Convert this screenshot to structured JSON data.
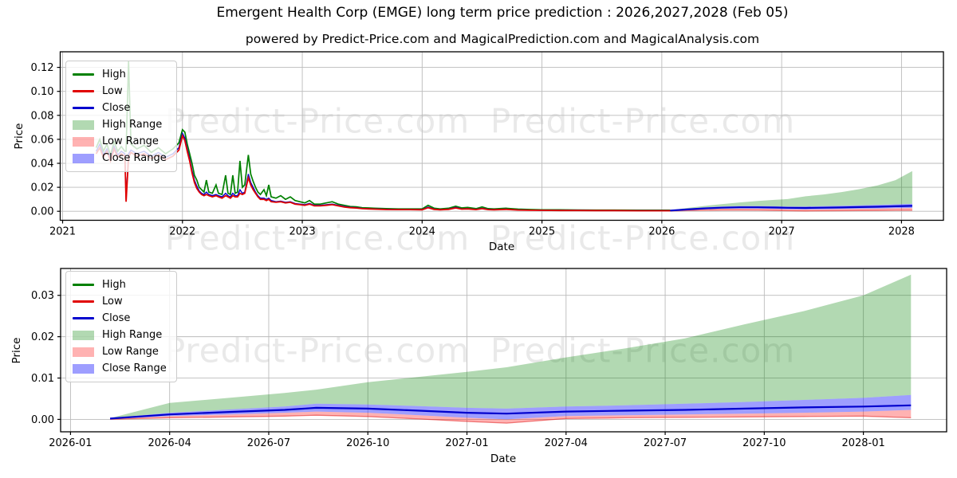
{
  "header": {
    "title": "Emergent Health Corp (EMGE) long term price prediction : 2026,2027,2028 (Feb 05)",
    "subtitle": "powered by Predict-Price.com and MagicalPrediction.com and MagicalAnalysis.com"
  },
  "watermark": {
    "text": "Predict-Price.com",
    "color": "#e9e9e9"
  },
  "colors": {
    "high_line": "#008000",
    "low_line": "#e00000",
    "close_line": "#0000cd",
    "pred_low_line": "rgba(225,30,30,0.55)",
    "high_range_fill": "rgba(0,128,0,0.30)",
    "low_range_fill": "rgba(255,0,0,0.30)",
    "close_range_fill": "rgba(40,40,255,0.45)",
    "grid": "#bbbbbb",
    "spine": "#000000"
  },
  "legend": [
    {
      "label": "High",
      "swatch": "line",
      "color_key": "high_line"
    },
    {
      "label": "Low",
      "swatch": "line",
      "color_key": "low_line"
    },
    {
      "label": "Close",
      "swatch": "line",
      "color_key": "close_line"
    },
    {
      "label": "High Range",
      "swatch": "patch",
      "color_key": "high_range_fill"
    },
    {
      "label": "Low Range",
      "swatch": "patch",
      "color_key": "low_range_fill"
    },
    {
      "label": "Close Range",
      "swatch": "patch",
      "color_key": "close_range_fill"
    }
  ],
  "chart_data": [
    {
      "type": "line",
      "xlabel": "Date",
      "ylabel": "Price",
      "grid": true,
      "legend_position": "upper-left",
      "xlim": [
        2020.98,
        2028.35
      ],
      "ylim": [
        -0.0075,
        0.133
      ],
      "xticks": [
        {
          "v": 2021,
          "label": "2021"
        },
        {
          "v": 2022,
          "label": "2022"
        },
        {
          "v": 2023,
          "label": "2023"
        },
        {
          "v": 2024,
          "label": "2024"
        },
        {
          "v": 2025,
          "label": "2025"
        },
        {
          "v": 2026,
          "label": "2026"
        },
        {
          "v": 2027,
          "label": "2027"
        },
        {
          "v": 2028,
          "label": "2028"
        }
      ],
      "yticks": [
        {
          "v": 0.0,
          "label": "0.00"
        },
        {
          "v": 0.02,
          "label": "0.02"
        },
        {
          "v": 0.04,
          "label": "0.04"
        },
        {
          "v": 0.06,
          "label": "0.06"
        },
        {
          "v": 0.08,
          "label": "0.08"
        },
        {
          "v": 0.1,
          "label": "0.10"
        },
        {
          "v": 0.12,
          "label": "0.12"
        }
      ],
      "history": {
        "x": [
          2021.28,
          2021.31,
          2021.34,
          2021.37,
          2021.4,
          2021.43,
          2021.46,
          2021.49,
          2021.52,
          2021.53,
          2021.55,
          2021.57,
          2021.62,
          2021.68,
          2021.74,
          2021.8,
          2021.86,
          2021.92,
          2021.97,
          2022.0,
          2022.02,
          2022.04,
          2022.06,
          2022.08,
          2022.1,
          2022.12,
          2022.14,
          2022.16,
          2022.18,
          2022.2,
          2022.22,
          2022.25,
          2022.28,
          2022.3,
          2022.33,
          2022.36,
          2022.38,
          2022.4,
          2022.42,
          2022.44,
          2022.46,
          2022.48,
          2022.5,
          2022.52,
          2022.55,
          2022.57,
          2022.59,
          2022.61,
          2022.63,
          2022.65,
          2022.68,
          2022.7,
          2022.72,
          2022.74,
          2022.78,
          2022.82,
          2022.86,
          2022.9,
          2022.94,
          2022.98,
          2023.02,
          2023.06,
          2023.1,
          2023.15,
          2023.2,
          2023.25,
          2023.3,
          2023.35,
          2023.4,
          2023.45,
          2023.5,
          2023.55,
          2023.6,
          2023.7,
          2023.8,
          2023.9,
          2024.0,
          2024.05,
          2024.1,
          2024.15,
          2024.22,
          2024.28,
          2024.33,
          2024.38,
          2024.45,
          2024.5,
          2024.55,
          2024.6,
          2024.7,
          2024.8,
          2024.9,
          2025.0,
          2025.15,
          2025.3,
          2025.45,
          2025.6,
          2025.8,
          2026.0,
          2026.07
        ],
        "high": [
          0.053,
          0.06,
          0.05,
          0.056,
          0.047,
          0.058,
          0.05,
          0.054,
          0.05,
          0.05,
          0.125,
          0.056,
          0.052,
          0.055,
          0.049,
          0.053,
          0.048,
          0.052,
          0.057,
          0.068,
          0.066,
          0.056,
          0.048,
          0.04,
          0.03,
          0.026,
          0.02,
          0.018,
          0.016,
          0.026,
          0.016,
          0.015,
          0.022,
          0.015,
          0.014,
          0.03,
          0.015,
          0.014,
          0.03,
          0.015,
          0.016,
          0.042,
          0.02,
          0.022,
          0.047,
          0.031,
          0.025,
          0.02,
          0.016,
          0.014,
          0.018,
          0.013,
          0.022,
          0.012,
          0.011,
          0.013,
          0.01,
          0.012,
          0.009,
          0.008,
          0.007,
          0.009,
          0.006,
          0.006,
          0.007,
          0.008,
          0.006,
          0.005,
          0.004,
          0.0037,
          0.003,
          0.0028,
          0.0025,
          0.0022,
          0.002,
          0.002,
          0.002,
          0.005,
          0.0026,
          0.002,
          0.0025,
          0.0042,
          0.0028,
          0.0032,
          0.0022,
          0.0036,
          0.0022,
          0.002,
          0.0025,
          0.0018,
          0.0015,
          0.0013,
          0.0012,
          0.0011,
          0.001,
          0.001,
          0.0009,
          0.0009,
          0.0009
        ],
        "low": [
          0.048,
          0.053,
          0.045,
          0.05,
          0.042,
          0.052,
          0.045,
          0.048,
          0.046,
          0.008,
          0.045,
          0.049,
          0.046,
          0.048,
          0.044,
          0.047,
          0.043,
          0.046,
          0.051,
          0.063,
          0.059,
          0.05,
          0.042,
          0.032,
          0.024,
          0.019,
          0.016,
          0.014,
          0.013,
          0.014,
          0.013,
          0.012,
          0.013,
          0.012,
          0.011,
          0.013,
          0.012,
          0.011,
          0.013,
          0.012,
          0.012,
          0.015,
          0.014,
          0.015,
          0.028,
          0.022,
          0.018,
          0.015,
          0.012,
          0.01,
          0.01,
          0.009,
          0.01,
          0.008,
          0.0075,
          0.008,
          0.007,
          0.0075,
          0.006,
          0.0055,
          0.005,
          0.006,
          0.0045,
          0.0045,
          0.005,
          0.0055,
          0.0045,
          0.0035,
          0.003,
          0.0027,
          0.0022,
          0.002,
          0.0018,
          0.0015,
          0.0014,
          0.0014,
          0.0013,
          0.003,
          0.0016,
          0.0013,
          0.0016,
          0.0028,
          0.0018,
          0.002,
          0.0014,
          0.0022,
          0.0014,
          0.0013,
          0.0016,
          0.0011,
          0.0009,
          0.0008,
          0.0007,
          0.0007,
          0.0006,
          0.0006,
          0.0005,
          0.0005,
          0.0005
        ],
        "close": [
          0.05,
          0.056,
          0.047,
          0.052,
          0.044,
          0.054,
          0.047,
          0.05,
          0.048,
          0.01,
          0.048,
          0.051,
          0.048,
          0.05,
          0.046,
          0.049,
          0.045,
          0.048,
          0.053,
          0.065,
          0.061,
          0.052,
          0.044,
          0.034,
          0.026,
          0.021,
          0.017,
          0.015,
          0.014,
          0.016,
          0.014,
          0.013,
          0.014,
          0.013,
          0.012,
          0.015,
          0.013,
          0.012,
          0.015,
          0.013,
          0.013,
          0.018,
          0.015,
          0.016,
          0.031,
          0.024,
          0.02,
          0.016,
          0.013,
          0.011,
          0.011,
          0.01,
          0.011,
          0.009,
          0.008,
          0.0085,
          0.0075,
          0.008,
          0.0065,
          0.006,
          0.0055,
          0.0065,
          0.005,
          0.005,
          0.0055,
          0.006,
          0.005,
          0.004,
          0.0033,
          0.003,
          0.0024,
          0.0022,
          0.002,
          0.0017,
          0.0015,
          0.0015,
          0.0014,
          0.0035,
          0.0018,
          0.0014,
          0.0018,
          0.0032,
          0.002,
          0.0022,
          0.0016,
          0.0025,
          0.0016,
          0.0014,
          0.0018,
          0.0012,
          0.001,
          0.0009,
          0.0008,
          0.0008,
          0.0007,
          0.0007,
          0.0006,
          0.0006,
          0.0006
        ]
      },
      "prediction": {
        "x": [
          2026.07,
          2026.2,
          2026.35,
          2026.5,
          2026.65,
          2026.8,
          2026.95,
          2027.05,
          2027.2,
          2027.35,
          2027.5,
          2027.65,
          2027.8,
          2027.95,
          2028.09
        ],
        "close": [
          0.0006,
          0.0015,
          0.0024,
          0.003,
          0.0033,
          0.0033,
          0.0031,
          0.0029,
          0.0028,
          0.003,
          0.0032,
          0.0035,
          0.0038,
          0.0042,
          0.0045
        ],
        "close_upper": [
          0.0008,
          0.002,
          0.0032,
          0.004,
          0.0044,
          0.0044,
          0.0042,
          0.004,
          0.004,
          0.0043,
          0.0046,
          0.005,
          0.0054,
          0.0058,
          0.0062
        ],
        "close_lower": [
          0.0004,
          0.001,
          0.0016,
          0.0021,
          0.0023,
          0.0022,
          0.002,
          0.0017,
          0.0015,
          0.0017,
          0.0019,
          0.0021,
          0.0023,
          0.0026,
          0.0028
        ],
        "high_upper": [
          0.0008,
          0.0026,
          0.0044,
          0.006,
          0.0074,
          0.0086,
          0.0096,
          0.0102,
          0.0125,
          0.014,
          0.016,
          0.0185,
          0.0215,
          0.026,
          0.0335
        ],
        "low_lower": [
          0.0003,
          0.0006,
          0.0008,
          0.001,
          0.001,
          0.0009,
          0.0007,
          0.0005,
          0.0003,
          0.0004,
          0.0005,
          0.0006,
          0.0007,
          0.0008,
          0.0008
        ]
      }
    },
    {
      "type": "line",
      "xlabel": "Date",
      "ylabel": "Price",
      "grid": true,
      "legend_position": "upper-left",
      "xlim": [
        2025.975,
        2028.21
      ],
      "ylim": [
        -0.003,
        0.0365
      ],
      "xticks": [
        {
          "v": 2026.0,
          "label": "2026-01"
        },
        {
          "v": 2026.25,
          "label": "2026-04"
        },
        {
          "v": 2026.5,
          "label": "2026-07"
        },
        {
          "v": 2026.75,
          "label": "2026-10"
        },
        {
          "v": 2027.0,
          "label": "2027-01"
        },
        {
          "v": 2027.25,
          "label": "2027-04"
        },
        {
          "v": 2027.5,
          "label": "2027-07"
        },
        {
          "v": 2027.75,
          "label": "2027-10"
        },
        {
          "v": 2028.0,
          "label": "2028-01"
        }
      ],
      "yticks": [
        {
          "v": 0.0,
          "label": "0.00"
        },
        {
          "v": 0.01,
          "label": "0.01"
        },
        {
          "v": 0.02,
          "label": "0.02"
        },
        {
          "v": 0.03,
          "label": "0.03"
        }
      ],
      "prediction": {
        "x": [
          2026.1,
          2026.25,
          2026.4,
          2026.54,
          2026.62,
          2026.75,
          2026.88,
          2027.0,
          2027.1,
          2027.25,
          2027.4,
          2027.55,
          2027.7,
          2027.85,
          2028.0,
          2028.12
        ],
        "close": [
          0.0002,
          0.0012,
          0.0018,
          0.0023,
          0.0028,
          0.0026,
          0.0021,
          0.0016,
          0.0014,
          0.0019,
          0.0021,
          0.0023,
          0.0026,
          0.0029,
          0.0031,
          0.0034
        ],
        "close_upper": [
          0.0003,
          0.0016,
          0.0024,
          0.0031,
          0.0038,
          0.0036,
          0.0032,
          0.0028,
          0.0026,
          0.0031,
          0.0034,
          0.0038,
          0.0042,
          0.0047,
          0.0052,
          0.0059
        ],
        "close_lower": [
          0.0001,
          0.0008,
          0.0012,
          0.0016,
          0.0019,
          0.0016,
          0.001,
          0.0004,
          0.0,
          0.0008,
          0.001,
          0.0012,
          0.0014,
          0.0016,
          0.0019,
          0.0023
        ],
        "high_upper": [
          0.0003,
          0.004,
          0.0052,
          0.0064,
          0.0072,
          0.009,
          0.0103,
          0.0115,
          0.0126,
          0.015,
          0.0172,
          0.0196,
          0.023,
          0.0262,
          0.03,
          0.035
        ],
        "low_lower": [
          0.0,
          0.0004,
          0.0006,
          0.0008,
          0.001,
          0.0007,
          0.0001,
          -0.0005,
          -0.0009,
          0.0002,
          0.0004,
          0.0005,
          0.0006,
          0.0007,
          0.0008,
          0.0004
        ]
      }
    }
  ]
}
